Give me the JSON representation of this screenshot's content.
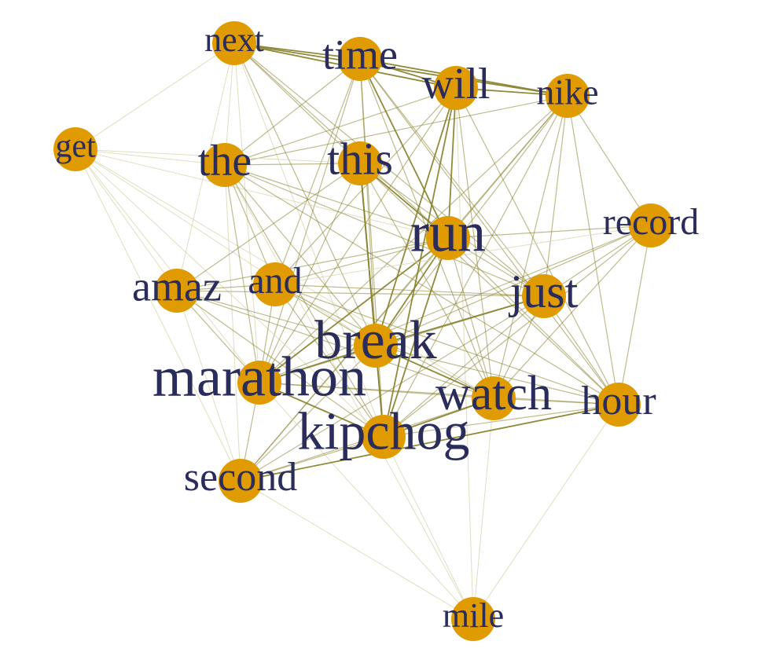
{
  "colors": {
    "background": "#ffffff",
    "node": "#e09b00",
    "label": "#2a2d5c",
    "edge_strong": "#8a8430",
    "edge_weak": "#d8d6b0"
  },
  "nodes": [
    {
      "id": "next",
      "label": "next"
    },
    {
      "id": "time",
      "label": "time"
    },
    {
      "id": "will",
      "label": "will"
    },
    {
      "id": "nike",
      "label": "nike"
    },
    {
      "id": "get",
      "label": "get"
    },
    {
      "id": "the",
      "label": "the"
    },
    {
      "id": "this",
      "label": "this"
    },
    {
      "id": "run",
      "label": "run"
    },
    {
      "id": "record",
      "label": "record"
    },
    {
      "id": "amaz",
      "label": "amaz"
    },
    {
      "id": "and",
      "label": "and"
    },
    {
      "id": "just",
      "label": "just"
    },
    {
      "id": "break",
      "label": "break"
    },
    {
      "id": "marathon",
      "label": "marathon"
    },
    {
      "id": "watch",
      "label": "watch"
    },
    {
      "id": "hour",
      "label": "hour"
    },
    {
      "id": "kipchog",
      "label": "kipchog"
    },
    {
      "id": "second",
      "label": "second"
    },
    {
      "id": "mile",
      "label": "mile"
    }
  ],
  "edges": [
    {
      "a": "next",
      "b": "time",
      "w": 3
    },
    {
      "a": "next",
      "b": "will",
      "w": 3
    },
    {
      "a": "next",
      "b": "nike",
      "w": 3
    },
    {
      "a": "next",
      "b": "this",
      "w": 2
    },
    {
      "a": "next",
      "b": "run",
      "w": 2
    },
    {
      "a": "next",
      "b": "break",
      "w": 2
    },
    {
      "a": "next",
      "b": "just",
      "w": 2
    },
    {
      "a": "next",
      "b": "get",
      "w": 1
    },
    {
      "a": "next",
      "b": "the",
      "w": 1
    },
    {
      "a": "next",
      "b": "amaz",
      "w": 1
    },
    {
      "a": "next",
      "b": "marathon",
      "w": 1
    },
    {
      "a": "next",
      "b": "kipchog",
      "w": 1
    },
    {
      "a": "time",
      "b": "will",
      "w": 3
    },
    {
      "a": "time",
      "b": "nike",
      "w": 3
    },
    {
      "a": "time",
      "b": "the",
      "w": 2
    },
    {
      "a": "time",
      "b": "run",
      "w": 3
    },
    {
      "a": "time",
      "b": "just",
      "w": 2
    },
    {
      "a": "time",
      "b": "watch",
      "w": 2
    },
    {
      "a": "time",
      "b": "hour",
      "w": 2
    },
    {
      "a": "time",
      "b": "marathon",
      "w": 2
    },
    {
      "a": "time",
      "b": "kipchog",
      "w": 2
    },
    {
      "a": "time",
      "b": "break",
      "w": 2
    },
    {
      "a": "time",
      "b": "and",
      "w": 2
    },
    {
      "a": "will",
      "b": "nike",
      "w": 3
    },
    {
      "a": "will",
      "b": "the",
      "w": 2
    },
    {
      "a": "will",
      "b": "run",
      "w": 3
    },
    {
      "a": "will",
      "b": "break",
      "w": 3
    },
    {
      "a": "will",
      "b": "marathon",
      "w": 2
    },
    {
      "a": "will",
      "b": "kipchog",
      "w": 3
    },
    {
      "a": "will",
      "b": "watch",
      "w": 2
    },
    {
      "a": "will",
      "b": "hour",
      "w": 2
    },
    {
      "a": "will",
      "b": "mile",
      "w": 1
    },
    {
      "a": "will",
      "b": "and",
      "w": 2
    },
    {
      "a": "nike",
      "b": "the",
      "w": 2
    },
    {
      "a": "nike",
      "b": "record",
      "w": 2
    },
    {
      "a": "nike",
      "b": "run",
      "w": 2
    },
    {
      "a": "nike",
      "b": "break",
      "w": 2
    },
    {
      "a": "nike",
      "b": "hour",
      "w": 2
    },
    {
      "a": "nike",
      "b": "marathon",
      "w": 2
    },
    {
      "a": "nike",
      "b": "kipchog",
      "w": 2
    },
    {
      "a": "nike",
      "b": "second",
      "w": 2
    },
    {
      "a": "nike",
      "b": "watch",
      "w": 2
    },
    {
      "a": "nike",
      "b": "just",
      "w": 2
    },
    {
      "a": "get",
      "b": "the",
      "w": 1
    },
    {
      "a": "get",
      "b": "amaz",
      "w": 1
    },
    {
      "a": "get",
      "b": "marathon",
      "w": 1
    },
    {
      "a": "get",
      "b": "run",
      "w": 1
    },
    {
      "a": "get",
      "b": "break",
      "w": 1
    },
    {
      "a": "get",
      "b": "watch",
      "w": 1
    },
    {
      "a": "get",
      "b": "kipchog",
      "w": 1
    },
    {
      "a": "get",
      "b": "this",
      "w": 1
    },
    {
      "a": "the",
      "b": "run",
      "w": 2
    },
    {
      "a": "the",
      "b": "this",
      "w": 2
    },
    {
      "a": "the",
      "b": "break",
      "w": 2
    },
    {
      "a": "the",
      "b": "marathon",
      "w": 2
    },
    {
      "a": "the",
      "b": "kipchog",
      "w": 2
    },
    {
      "a": "the",
      "b": "and",
      "w": 2
    },
    {
      "a": "the",
      "b": "second",
      "w": 1
    },
    {
      "a": "the",
      "b": "just",
      "w": 2
    },
    {
      "a": "the",
      "b": "hour",
      "w": 2
    },
    {
      "a": "this",
      "b": "run",
      "w": 3
    },
    {
      "a": "this",
      "b": "break",
      "w": 3
    },
    {
      "a": "this",
      "b": "marathon",
      "w": 2
    },
    {
      "a": "this",
      "b": "kipchog",
      "w": 3
    },
    {
      "a": "this",
      "b": "just",
      "w": 2
    },
    {
      "a": "this",
      "b": "watch",
      "w": 2
    },
    {
      "a": "this",
      "b": "hour",
      "w": 2
    },
    {
      "a": "this",
      "b": "amaz",
      "w": 2
    },
    {
      "a": "run",
      "b": "record",
      "w": 2
    },
    {
      "a": "run",
      "b": "just",
      "w": 2
    },
    {
      "a": "run",
      "b": "break",
      "w": 3
    },
    {
      "a": "run",
      "b": "marathon",
      "w": 3
    },
    {
      "a": "run",
      "b": "kipchog",
      "w": 3
    },
    {
      "a": "run",
      "b": "watch",
      "w": 2
    },
    {
      "a": "run",
      "b": "hour",
      "w": 2
    },
    {
      "a": "run",
      "b": "and",
      "w": 2
    },
    {
      "a": "run",
      "b": "amaz",
      "w": 2
    },
    {
      "a": "run",
      "b": "second",
      "w": 2
    },
    {
      "a": "record",
      "b": "break",
      "w": 2
    },
    {
      "a": "record",
      "b": "just",
      "w": 2
    },
    {
      "a": "record",
      "b": "hour",
      "w": 2
    },
    {
      "a": "record",
      "b": "marathon",
      "w": 2
    },
    {
      "a": "record",
      "b": "kipchog",
      "w": 2
    },
    {
      "a": "record",
      "b": "watch",
      "w": 2
    },
    {
      "a": "record",
      "b": "and",
      "w": 1
    },
    {
      "a": "amaz",
      "b": "and",
      "w": 2
    },
    {
      "a": "amaz",
      "b": "marathon",
      "w": 2
    },
    {
      "a": "amaz",
      "b": "kipchog",
      "w": 2
    },
    {
      "a": "amaz",
      "b": "break",
      "w": 2
    },
    {
      "a": "amaz",
      "b": "just",
      "w": 2
    },
    {
      "a": "amaz",
      "b": "second",
      "w": 1
    },
    {
      "a": "amaz",
      "b": "watch",
      "w": 2
    },
    {
      "a": "and",
      "b": "just",
      "w": 2
    },
    {
      "a": "and",
      "b": "break",
      "w": 2
    },
    {
      "a": "and",
      "b": "marathon",
      "w": 2
    },
    {
      "a": "and",
      "b": "kipchog",
      "w": 2
    },
    {
      "a": "and",
      "b": "watch",
      "w": 2
    },
    {
      "a": "and",
      "b": "hour",
      "w": 2
    },
    {
      "a": "just",
      "b": "break",
      "w": 3
    },
    {
      "a": "just",
      "b": "marathon",
      "w": 2
    },
    {
      "a": "just",
      "b": "kipchog",
      "w": 2
    },
    {
      "a": "just",
      "b": "watch",
      "w": 2
    },
    {
      "a": "just",
      "b": "hour",
      "w": 2
    },
    {
      "a": "just",
      "b": "second",
      "w": 2
    },
    {
      "a": "break",
      "b": "marathon",
      "w": 3
    },
    {
      "a": "break",
      "b": "kipchog",
      "w": 3
    },
    {
      "a": "break",
      "b": "watch",
      "w": 3
    },
    {
      "a": "break",
      "b": "hour",
      "w": 2
    },
    {
      "a": "break",
      "b": "second",
      "w": 2
    },
    {
      "a": "marathon",
      "b": "kipchog",
      "w": 3
    },
    {
      "a": "marathon",
      "b": "watch",
      "w": 2
    },
    {
      "a": "marathon",
      "b": "hour",
      "w": 2
    },
    {
      "a": "marathon",
      "b": "second",
      "w": 2
    },
    {
      "a": "marathon",
      "b": "mile",
      "w": 1
    },
    {
      "a": "watch",
      "b": "hour",
      "w": 2
    },
    {
      "a": "watch",
      "b": "kipchog",
      "w": 3
    },
    {
      "a": "watch",
      "b": "second",
      "w": 2
    },
    {
      "a": "watch",
      "b": "mile",
      "w": 1
    },
    {
      "a": "hour",
      "b": "kipchog",
      "w": 2
    },
    {
      "a": "hour",
      "b": "second",
      "w": 3
    },
    {
      "a": "hour",
      "b": "mile",
      "w": 1
    },
    {
      "a": "kipchog",
      "b": "second",
      "w": 2
    },
    {
      "a": "kipchog",
      "b": "mile",
      "w": 1
    },
    {
      "a": "second",
      "b": "mile",
      "w": 1
    },
    {
      "a": "get",
      "b": "second",
      "w": 1
    },
    {
      "a": "the",
      "b": "mile",
      "w": 1
    }
  ]
}
